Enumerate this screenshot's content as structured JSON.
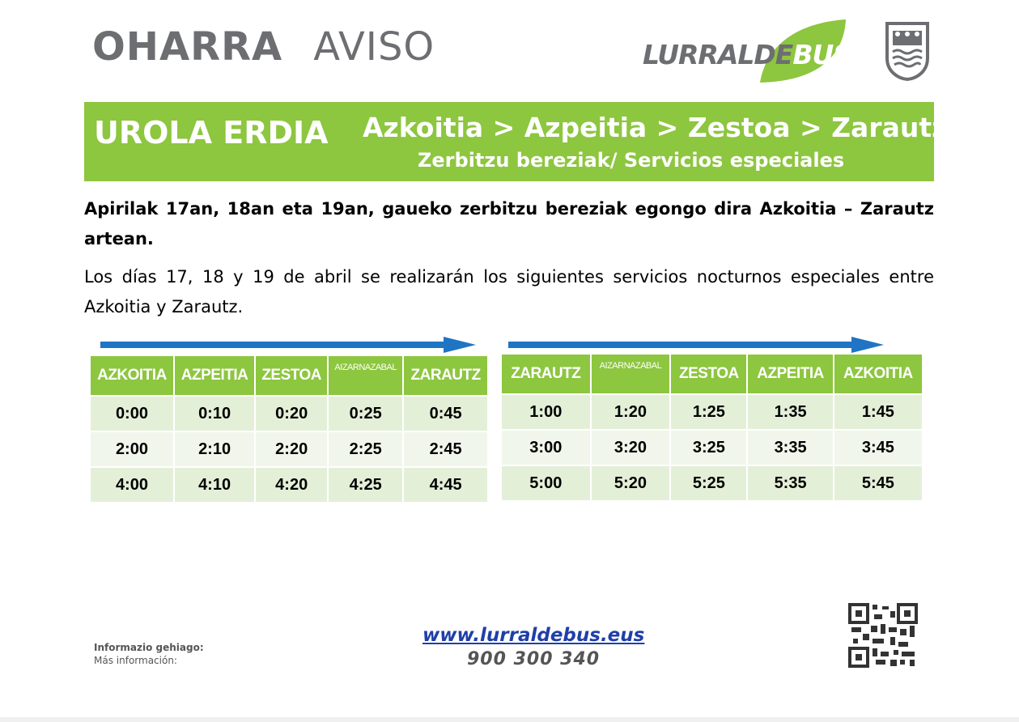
{
  "header": {
    "title_eu": "OHARRA",
    "title_es": "AVISO",
    "logo_text_a": "LURRALDE",
    "logo_text_b": "BUS",
    "shield_icon": "gipuzkoa-shield-icon"
  },
  "banner": {
    "area": "UROLA ERDIA",
    "route": "Azkoitia > Azpeitia > Zestoa > Zarautz",
    "subtitle": "Zerbitzu bereziak/ Servicios especiales"
  },
  "body": {
    "p1": "Apirilak 17an, 18an eta 19an, gaueko zerbitzu bereziak egongo dira Azkoitia – Zarautz artean.",
    "p2": "Los días 17, 18 y 19 de abril se realizarán los siguientes servicios nocturnos especiales entre Azkoitia y Zarautz."
  },
  "colors": {
    "green": "#8dc63f",
    "blue_arrow": "#1f74c4",
    "grey_text": "#6d6e71",
    "link_blue": "#1f3fa8"
  },
  "table_outbound": {
    "headers": [
      "AZKOITIA",
      "AZPEITIA",
      "ZESTOA",
      "AIZARNAZABAL",
      "ZARAUTZ"
    ],
    "rows": [
      [
        "0:00",
        "0:10",
        "0:20",
        "0:25",
        "0:45"
      ],
      [
        "2:00",
        "2:10",
        "2:20",
        "2:25",
        "2:45"
      ],
      [
        "4:00",
        "4:10",
        "4:20",
        "4:25",
        "4:45"
      ]
    ]
  },
  "table_return": {
    "headers": [
      "ZARAUTZ",
      "AIZARNAZABAL",
      "ZESTOA",
      "AZPEITIA",
      "AZKOITIA"
    ],
    "rows": [
      [
        "1:00",
        "1:20",
        "1:25",
        "1:35",
        "1:45"
      ],
      [
        "3:00",
        "3:20",
        "3:25",
        "3:35",
        "3:45"
      ],
      [
        "5:00",
        "5:20",
        "5:25",
        "5:35",
        "5:45"
      ]
    ]
  },
  "footer": {
    "more_info_eu": "Informazio gehiago:",
    "more_info_es": "Más información:",
    "website": "www.lurraldebus.eus",
    "phone": "900 300 340",
    "qr_icon": "qr-code-icon"
  }
}
